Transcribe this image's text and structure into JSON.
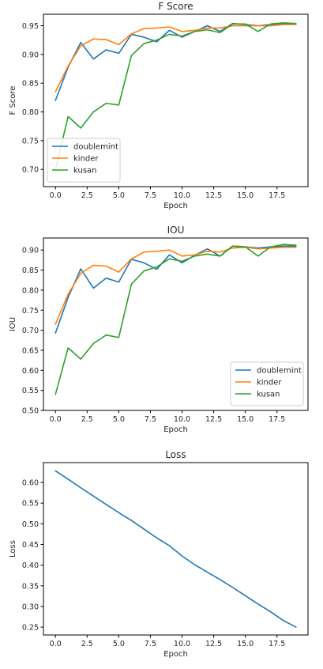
{
  "colors": {
    "doublemint": "#1f77b4",
    "kinder": "#ff7f0e",
    "kusan": "#2ca02c"
  },
  "chart_data": [
    {
      "type": "line",
      "title": "F Score",
      "xlabel": "Epoch",
      "ylabel": "F Score",
      "xlim": [
        -0.95,
        19.95
      ],
      "ylim": [
        0.67,
        0.97
      ],
      "xticks": [
        0.0,
        2.5,
        5.0,
        7.5,
        10.0,
        12.5,
        15.0,
        17.5
      ],
      "xtick_labels": [
        "0.0",
        "2.5",
        "5.0",
        "7.5",
        "10.0",
        "12.5",
        "15.0",
        "17.5"
      ],
      "yticks": [
        0.7,
        0.75,
        0.8,
        0.85,
        0.9,
        0.95
      ],
      "ytick_labels": [
        "0.70",
        "0.75",
        "0.80",
        "0.85",
        "0.90",
        "0.95"
      ],
      "legend": "lower-left",
      "grid": false,
      "x": [
        0,
        1,
        2,
        3,
        4,
        5,
        6,
        7,
        8,
        9,
        10,
        11,
        12,
        13,
        14,
        15,
        16,
        17,
        18,
        19
      ],
      "series": [
        {
          "name": "doublemint",
          "values": [
            0.82,
            0.878,
            0.921,
            0.892,
            0.908,
            0.902,
            0.935,
            0.93,
            0.922,
            0.942,
            0.93,
            0.94,
            0.95,
            0.94,
            0.954,
            0.952,
            0.95,
            0.952,
            0.953,
            0.953
          ]
        },
        {
          "name": "kinder",
          "values": [
            0.835,
            0.88,
            0.915,
            0.927,
            0.926,
            0.917,
            0.936,
            0.945,
            0.946,
            0.948,
            0.94,
            0.942,
            0.946,
            0.946,
            0.95,
            0.95,
            0.95,
            0.95,
            0.952,
            0.952
          ]
        },
        {
          "name": "kusan",
          "values": [
            0.7,
            0.792,
            0.772,
            0.8,
            0.815,
            0.812,
            0.898,
            0.919,
            0.925,
            0.935,
            0.932,
            0.94,
            0.943,
            0.938,
            0.953,
            0.953,
            0.94,
            0.953,
            0.955,
            0.954
          ]
        }
      ]
    },
    {
      "type": "line",
      "title": "IOU",
      "xlabel": "Epoch",
      "ylabel": "IOU",
      "xlim": [
        -0.95,
        19.95
      ],
      "ylim": [
        0.5,
        0.93
      ],
      "xticks": [
        0.0,
        2.5,
        5.0,
        7.5,
        10.0,
        12.5,
        15.0,
        17.5
      ],
      "xtick_labels": [
        "0.0",
        "2.5",
        "5.0",
        "7.5",
        "10.0",
        "12.5",
        "15.0",
        "17.5"
      ],
      "yticks": [
        0.5,
        0.55,
        0.6,
        0.65,
        0.7,
        0.75,
        0.8,
        0.85,
        0.9
      ],
      "ytick_labels": [
        "0.50",
        "0.55",
        "0.60",
        "0.65",
        "0.70",
        "0.75",
        "0.80",
        "0.85",
        "0.90"
      ],
      "legend": "lower-right",
      "grid": false,
      "x": [
        0,
        1,
        2,
        3,
        4,
        5,
        6,
        7,
        8,
        9,
        10,
        11,
        12,
        13,
        14,
        15,
        16,
        17,
        18,
        19
      ],
      "series": [
        {
          "name": "doublemint",
          "values": [
            0.693,
            0.782,
            0.853,
            0.805,
            0.83,
            0.82,
            0.877,
            0.868,
            0.852,
            0.888,
            0.868,
            0.887,
            0.903,
            0.885,
            0.91,
            0.908,
            0.905,
            0.908,
            0.91,
            0.91
          ]
        },
        {
          "name": "kinder",
          "values": [
            0.715,
            0.79,
            0.842,
            0.862,
            0.86,
            0.845,
            0.878,
            0.895,
            0.897,
            0.9,
            0.885,
            0.888,
            0.897,
            0.895,
            0.905,
            0.907,
            0.903,
            0.905,
            0.907,
            0.907
          ]
        },
        {
          "name": "kusan",
          "values": [
            0.54,
            0.656,
            0.628,
            0.667,
            0.688,
            0.682,
            0.815,
            0.848,
            0.858,
            0.878,
            0.872,
            0.885,
            0.89,
            0.885,
            0.91,
            0.908,
            0.885,
            0.908,
            0.914,
            0.912
          ]
        }
      ]
    },
    {
      "type": "line",
      "title": "Loss",
      "xlabel": "Epoch",
      "ylabel": "Loss",
      "xlim": [
        -0.95,
        19.95
      ],
      "ylim": [
        0.231,
        0.648
      ],
      "xticks": [
        0.0,
        2.5,
        5.0,
        7.5,
        10.0,
        12.5,
        15.0,
        17.5
      ],
      "xtick_labels": [
        "0.0",
        "2.5",
        "5.0",
        "7.5",
        "10.0",
        "12.5",
        "15.0",
        "17.5"
      ],
      "yticks": [
        0.25,
        0.3,
        0.35,
        0.4,
        0.45,
        0.5,
        0.55,
        0.6
      ],
      "ytick_labels": [
        "0.25",
        "0.30",
        "0.35",
        "0.40",
        "0.45",
        "0.50",
        "0.55",
        "0.60"
      ],
      "legend": "none",
      "grid": false,
      "x": [
        0,
        1,
        2,
        3,
        4,
        5,
        6,
        7,
        8,
        9,
        10,
        11,
        12,
        13,
        14,
        15,
        16,
        17,
        18,
        19
      ],
      "series": [
        {
          "values": [
            0.628,
            0.608,
            0.587,
            0.567,
            0.547,
            0.527,
            0.508,
            0.487,
            0.466,
            0.447,
            0.422,
            0.401,
            0.383,
            0.365,
            0.346,
            0.326,
            0.306,
            0.287,
            0.266,
            0.25
          ]
        }
      ]
    }
  ]
}
